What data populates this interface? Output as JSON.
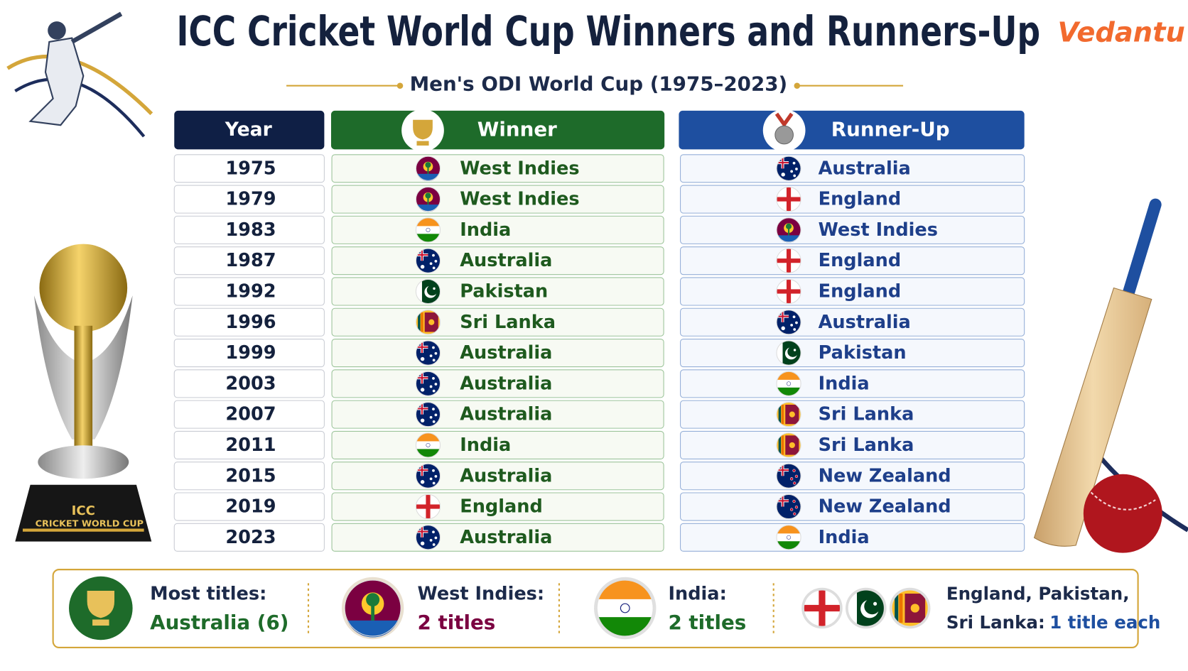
{
  "header": {
    "title": "ICC Cricket World Cup Winners and Runners-Up",
    "subtitle": "Men's ODI World Cup (1975–2023)",
    "logo": "Vedantu"
  },
  "table": {
    "columns": [
      "Year",
      "Winner",
      "Runner-Up"
    ],
    "rows": [
      [
        1975,
        "West Indies",
        "Australia"
      ],
      [
        1979,
        "West Indies",
        "England"
      ],
      [
        1983,
        "India",
        "West Indies"
      ],
      [
        1987,
        "Australia",
        "England"
      ],
      [
        1992,
        "Pakistan",
        "England"
      ],
      [
        1996,
        "Sri Lanka",
        "Australia"
      ],
      [
        1999,
        "Australia",
        "Pakistan"
      ],
      [
        2003,
        "Australia",
        "India"
      ],
      [
        2007,
        "Australia",
        "Sri Lanka"
      ],
      [
        2011,
        "India",
        "Sri Lanka"
      ],
      [
        2015,
        "Australia",
        "New Zealand"
      ],
      [
        2019,
        "England",
        "New Zealand"
      ],
      [
        2023,
        "Australia",
        "India"
      ]
    ]
  },
  "trophy": {
    "line1": "ICC",
    "line2": "CRICKET WORLD CUP"
  },
  "summary": [
    {
      "label": "Most titles:",
      "value": "Australia (6)"
    },
    {
      "label": "West Indies:",
      "value": "2 titles"
    },
    {
      "label": "India:",
      "value": "2 titles"
    },
    {
      "label": "England, Pakistan,",
      "label_2": "Sri Lanka:",
      "value": "1 title each"
    }
  ]
}
